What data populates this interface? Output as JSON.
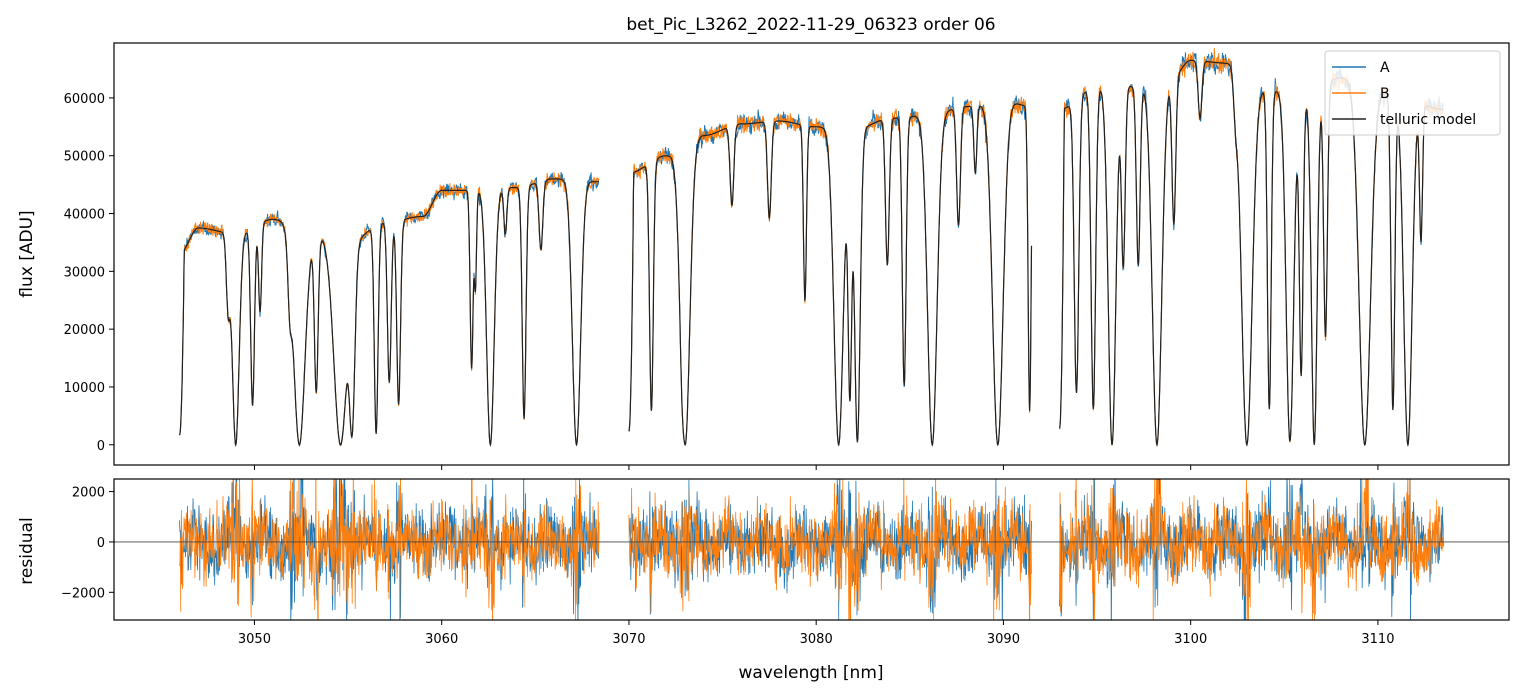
{
  "chart_data": [
    {
      "type": "line",
      "title": "bet_Pic_L3262_2022-11-29_06323  order 06",
      "xlabel": "",
      "ylabel": "flux [ADU]",
      "xlim": [
        3042.5,
        3117.0
      ],
      "ylim": [
        -3500,
        69500
      ],
      "yticks": [
        0,
        10000,
        20000,
        30000,
        40000,
        50000,
        60000
      ],
      "ytick_labels": [
        "0",
        "10000",
        "20000",
        "30000",
        "40000",
        "50000",
        "60000"
      ],
      "legend_position": "top-right",
      "legend": [
        "A",
        "B",
        "telluric model"
      ],
      "colors": {
        "A": "#1f77b4",
        "B": "#ff7f0e",
        "model": "#222222"
      },
      "continuum": {
        "x": [
          3046.0,
          3047.0,
          3049.0,
          3051.0,
          3053.0,
          3055.0,
          3057.0,
          3059.0,
          3060.0,
          3062.0,
          3064.0,
          3066.0,
          3068.4,
          3070.0,
          3072.0,
          3074.0,
          3076.0,
          3078.0,
          3080.0,
          3082.0,
          3084.0,
          3086.0,
          3088.0,
          3090.0,
          3091.5,
          3093.0,
          3095.0,
          3097.0,
          3099.0,
          3100.0,
          3102.0,
          3104.0,
          3106.0,
          3108.0,
          3110.0,
          3112.0,
          3113.5
        ],
        "y": [
          33000,
          37500,
          36500,
          39000,
          36500,
          35000,
          38500,
          39500,
          44000,
          44000,
          44500,
          46000,
          45500,
          47000,
          50000,
          53500,
          55500,
          56000,
          55000,
          54500,
          56500,
          57000,
          58500,
          59500,
          58500,
          58000,
          62000,
          62000,
          63500,
          66500,
          66000,
          61500,
          60000,
          63500,
          61000,
          59000,
          58000
        ]
      },
      "segments": [
        [
          3046.0,
          3068.4
        ],
        [
          3070.0,
          3091.5
        ],
        [
          3093.0,
          3113.5
        ]
      ],
      "absorption_lines": [
        {
          "x": 3048.6,
          "depth": 0.35,
          "width": 0.1
        },
        {
          "x": 3049.0,
          "depth": 1.0,
          "width": 0.18
        },
        {
          "x": 3049.9,
          "depth": 0.82,
          "width": 0.1
        },
        {
          "x": 3050.3,
          "depth": 0.4,
          "width": 0.08
        },
        {
          "x": 3051.9,
          "depth": 0.3,
          "width": 0.1
        },
        {
          "x": 3052.4,
          "depth": 1.0,
          "width": 0.3
        },
        {
          "x": 3053.3,
          "depth": 0.75,
          "width": 0.1
        },
        {
          "x": 3054.6,
          "depth": 1.0,
          "width": 0.35
        },
        {
          "x": 3055.2,
          "depth": 0.95,
          "width": 0.15
        },
        {
          "x": 3056.5,
          "depth": 0.95,
          "width": 0.1
        },
        {
          "x": 3057.2,
          "depth": 0.72,
          "width": 0.1
        },
        {
          "x": 3057.7,
          "depth": 0.82,
          "width": 0.1
        },
        {
          "x": 3061.6,
          "depth": 0.7,
          "width": 0.08
        },
        {
          "x": 3061.8,
          "depth": 0.38,
          "width": 0.06
        },
        {
          "x": 3062.6,
          "depth": 1.0,
          "width": 0.2
        },
        {
          "x": 3063.4,
          "depth": 0.18,
          "width": 0.08
        },
        {
          "x": 3064.4,
          "depth": 0.9,
          "width": 0.1
        },
        {
          "x": 3065.3,
          "depth": 0.26,
          "width": 0.1
        },
        {
          "x": 3067.2,
          "depth": 1.0,
          "width": 0.22
        },
        {
          "x": 3071.2,
          "depth": 0.88,
          "width": 0.1
        },
        {
          "x": 3072.9,
          "depth": 0.4,
          "width": 0.1
        },
        {
          "x": 3073.0,
          "depth": 1.0,
          "width": 0.25
        },
        {
          "x": 3075.5,
          "depth": 0.25,
          "width": 0.1
        },
        {
          "x": 3077.5,
          "depth": 0.3,
          "width": 0.1
        },
        {
          "x": 3079.4,
          "depth": 0.55,
          "width": 0.08
        },
        {
          "x": 3081.2,
          "depth": 1.0,
          "width": 0.25
        },
        {
          "x": 3081.8,
          "depth": 0.85,
          "width": 0.1
        },
        {
          "x": 3082.2,
          "depth": 0.99,
          "width": 0.15
        },
        {
          "x": 3083.8,
          "depth": 0.45,
          "width": 0.1
        },
        {
          "x": 3084.7,
          "depth": 0.82,
          "width": 0.1
        },
        {
          "x": 3086.2,
          "depth": 1.0,
          "width": 0.25
        },
        {
          "x": 3087.6,
          "depth": 0.35,
          "width": 0.1
        },
        {
          "x": 3088.5,
          "depth": 0.2,
          "width": 0.08
        },
        {
          "x": 3089.7,
          "depth": 1.0,
          "width": 0.28
        },
        {
          "x": 3091.4,
          "depth": 0.9,
          "width": 0.08
        },
        {
          "x": 3093.9,
          "depth": 0.85,
          "width": 0.12
        },
        {
          "x": 3094.8,
          "depth": 0.9,
          "width": 0.12
        },
        {
          "x": 3095.8,
          "depth": 1.0,
          "width": 0.2
        },
        {
          "x": 3096.4,
          "depth": 0.5,
          "width": 0.1
        },
        {
          "x": 3097.2,
          "depth": 0.5,
          "width": 0.1
        },
        {
          "x": 3098.2,
          "depth": 1.0,
          "width": 0.25
        },
        {
          "x": 3099.1,
          "depth": 0.4,
          "width": 0.1
        },
        {
          "x": 3100.5,
          "depth": 0.15,
          "width": 0.1
        },
        {
          "x": 3102.4,
          "depth": 0.1,
          "width": 0.1
        },
        {
          "x": 3103.0,
          "depth": 1.0,
          "width": 0.28
        },
        {
          "x": 3104.2,
          "depth": 0.9,
          "width": 0.1
        },
        {
          "x": 3105.3,
          "depth": 0.99,
          "width": 0.2
        },
        {
          "x": 3105.9,
          "depth": 0.8,
          "width": 0.1
        },
        {
          "x": 3106.6,
          "depth": 1.0,
          "width": 0.15
        },
        {
          "x": 3107.2,
          "depth": 0.7,
          "width": 0.1
        },
        {
          "x": 3109.3,
          "depth": 1.0,
          "width": 0.3
        },
        {
          "x": 3110.8,
          "depth": 0.9,
          "width": 0.1
        },
        {
          "x": 3111.6,
          "depth": 1.0,
          "width": 0.22
        },
        {
          "x": 3112.3,
          "depth": 0.4,
          "width": 0.08
        }
      ]
    },
    {
      "type": "line",
      "xlabel": "wavelength [nm]",
      "ylabel": "residual",
      "xlim": [
        3042.5,
        3117.0
      ],
      "ylim": [
        -3100,
        2500
      ],
      "xticks": [
        3050,
        3060,
        3070,
        3080,
        3090,
        3100,
        3110
      ],
      "xtick_labels": [
        "3050",
        "3060",
        "3070",
        "3080",
        "3090",
        "3100",
        "3110"
      ],
      "yticks": [
        -2000,
        0,
        2000
      ],
      "ytick_labels": [
        "−2000",
        "0",
        "2000"
      ],
      "zero_line": 0,
      "residual_scatter": 700
    }
  ]
}
